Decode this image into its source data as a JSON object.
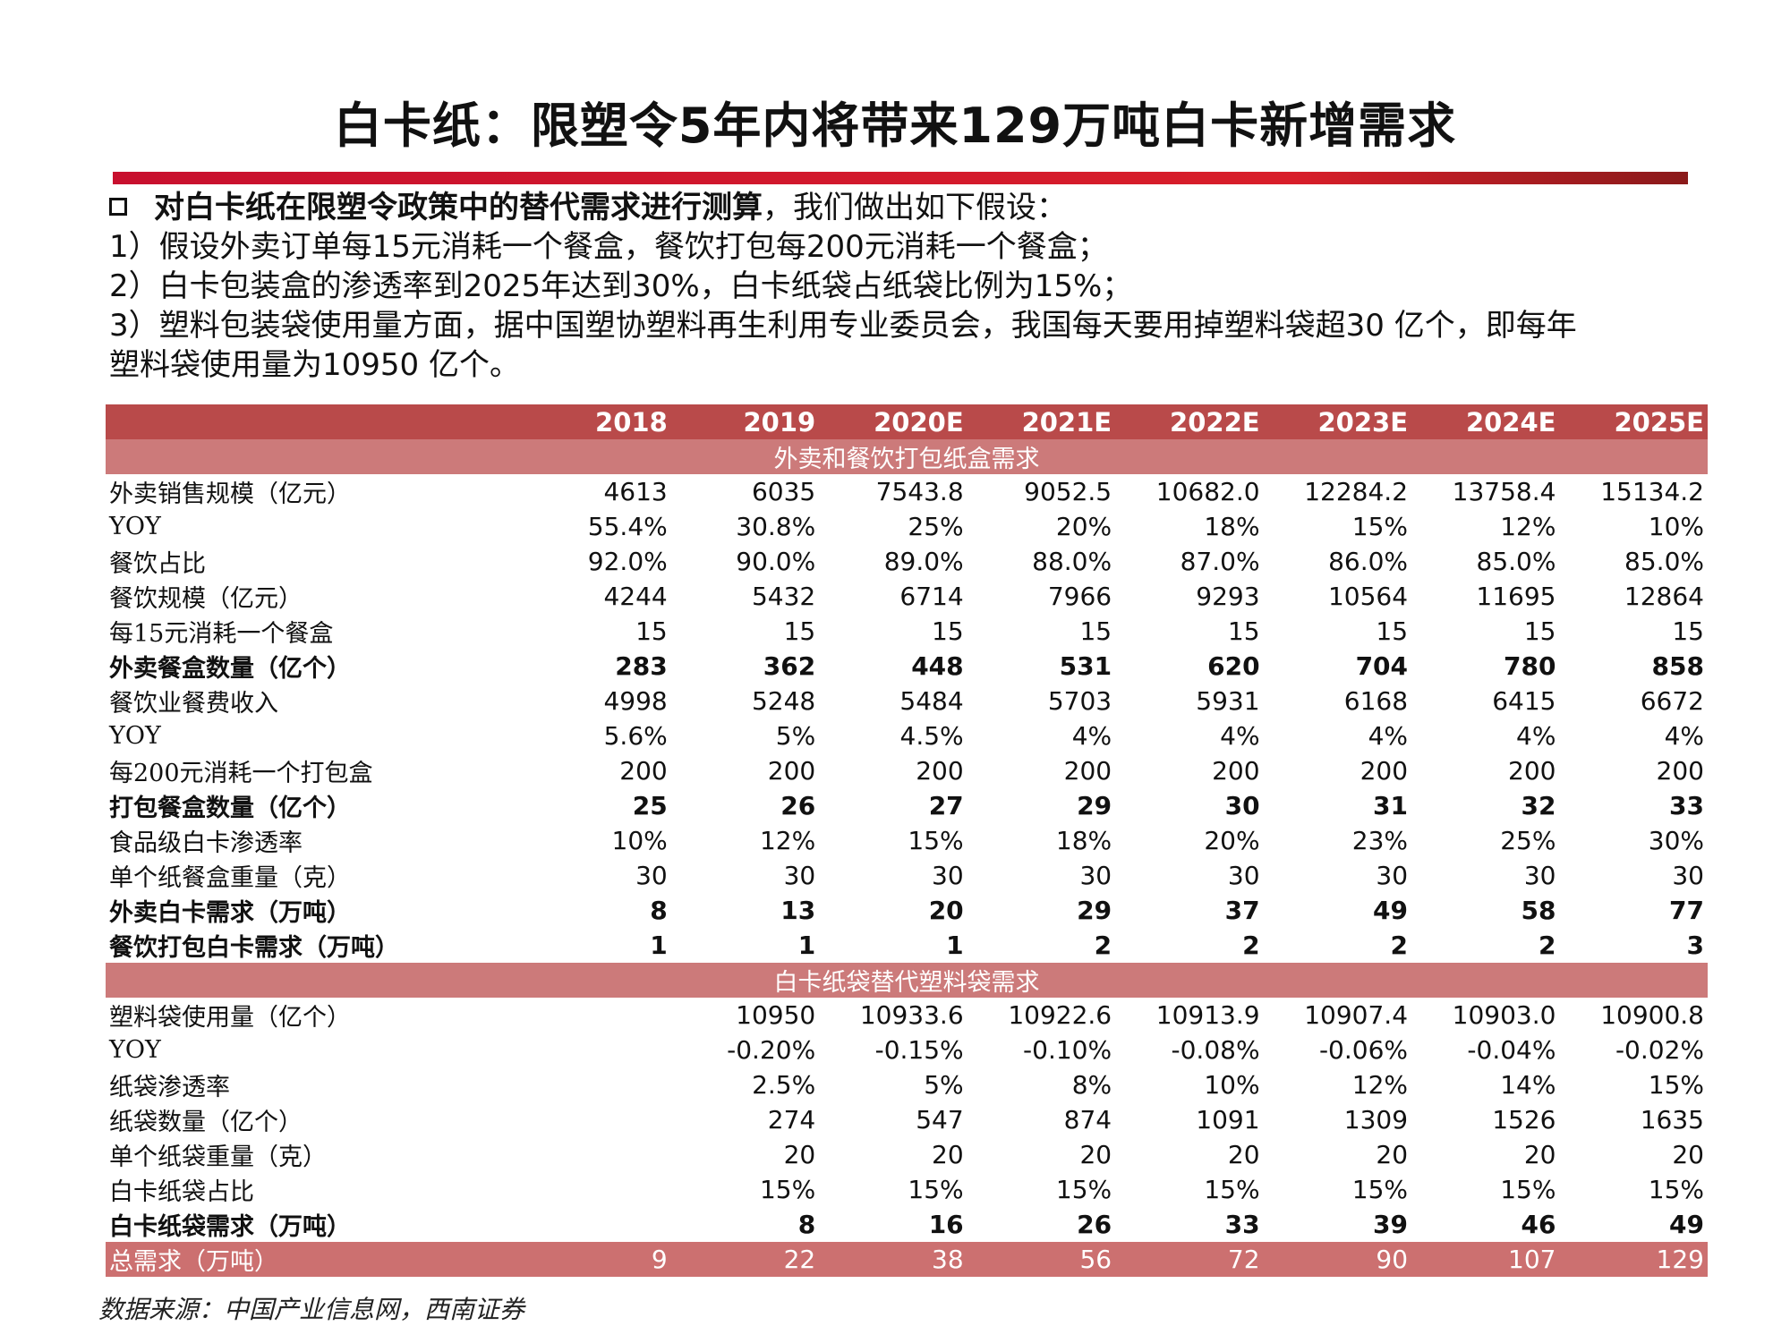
{
  "title": "白卡纸：限塑令5年内将带来129万吨白卡新增需求",
  "intro": {
    "lead": "对白卡纸在限塑令政策中的替代需求进行测算",
    "lead_tail": "，我们做出如下假设：",
    "line1": "1）假设外卖订单每15元消耗一个餐盒，餐饮打包每200元消耗一个餐盒；",
    "line2": "2）白卡包装盒的渗透率到2025年达到30%，白卡纸袋占纸袋比例为15%；",
    "line3": "3）塑料包装袋使用量方面，据中国塑协塑料再生利用专业委员会，我国每天要用掉塑料袋超30 亿个，即每年",
    "line4": "塑料袋使用量为10950 亿个。"
  },
  "table": {
    "years": [
      "2018",
      "2019",
      "2020E",
      "2021E",
      "2022E",
      "2023E",
      "2024E",
      "2025E"
    ],
    "section1": "外卖和餐饮打包纸盒需求",
    "section2": "白卡纸袋替代塑料袋需求",
    "rows1": [
      {
        "label": "外卖销售规模（亿元）",
        "bold": false,
        "values": [
          "4613",
          "6035",
          "7543.8",
          "9052.5",
          "10682.0",
          "12284.2",
          "13758.4",
          "15134.2"
        ]
      },
      {
        "label": "YOY",
        "bold": false,
        "values": [
          "55.4%",
          "30.8%",
          "25%",
          "20%",
          "18%",
          "15%",
          "12%",
          "10%"
        ]
      },
      {
        "label": "餐饮占比",
        "bold": false,
        "values": [
          "92.0%",
          "90.0%",
          "89.0%",
          "88.0%",
          "87.0%",
          "86.0%",
          "85.0%",
          "85.0%"
        ]
      },
      {
        "label": "餐饮规模（亿元）",
        "bold": false,
        "values": [
          "4244",
          "5432",
          "6714",
          "7966",
          "9293",
          "10564",
          "11695",
          "12864"
        ]
      },
      {
        "label": "每15元消耗一个餐盒",
        "bold": false,
        "values": [
          "15",
          "15",
          "15",
          "15",
          "15",
          "15",
          "15",
          "15"
        ]
      },
      {
        "label": "外卖餐盒数量（亿个）",
        "bold": true,
        "values": [
          "283",
          "362",
          "448",
          "531",
          "620",
          "704",
          "780",
          "858"
        ]
      },
      {
        "label": "餐饮业餐费收入",
        "bold": false,
        "values": [
          "4998",
          "5248",
          "5484",
          "5703",
          "5931",
          "6168",
          "6415",
          "6672"
        ]
      },
      {
        "label": "YOY",
        "bold": false,
        "values": [
          "5.6%",
          "5%",
          "4.5%",
          "4%",
          "4%",
          "4%",
          "4%",
          "4%"
        ]
      },
      {
        "label": "每200元消耗一个打包盒",
        "bold": false,
        "values": [
          "200",
          "200",
          "200",
          "200",
          "200",
          "200",
          "200",
          "200"
        ]
      },
      {
        "label": "打包餐盒数量（亿个）",
        "bold": true,
        "values": [
          "25",
          "26",
          "27",
          "29",
          "30",
          "31",
          "32",
          "33"
        ]
      },
      {
        "label": "食品级白卡渗透率",
        "bold": false,
        "values": [
          "10%",
          "12%",
          "15%",
          "18%",
          "20%",
          "23%",
          "25%",
          "30%"
        ]
      },
      {
        "label": "单个纸餐盒重量（克）",
        "bold": false,
        "values": [
          "30",
          "30",
          "30",
          "30",
          "30",
          "30",
          "30",
          "30"
        ]
      },
      {
        "label": "外卖白卡需求（万吨）",
        "bold": true,
        "values": [
          "8",
          "13",
          "20",
          "29",
          "37",
          "49",
          "58",
          "77"
        ]
      },
      {
        "label": "餐饮打包白卡需求（万吨）",
        "bold": true,
        "values": [
          "1",
          "1",
          "1",
          "2",
          "2",
          "2",
          "2",
          "3"
        ]
      }
    ],
    "rows2": [
      {
        "label": "塑料袋使用量（亿个）",
        "bold": false,
        "values": [
          "",
          "10950",
          "10933.6",
          "10922.6",
          "10913.9",
          "10907.4",
          "10903.0",
          "10900.8"
        ]
      },
      {
        "label": "YOY",
        "bold": false,
        "values": [
          "",
          "-0.20%",
          "-0.15%",
          "-0.10%",
          "-0.08%",
          "-0.06%",
          "-0.04%",
          "-0.02%"
        ]
      },
      {
        "label": "纸袋渗透率",
        "bold": false,
        "values": [
          "",
          "2.5%",
          "5%",
          "8%",
          "10%",
          "12%",
          "14%",
          "15%"
        ]
      },
      {
        "label": "纸袋数量（亿个）",
        "bold": false,
        "values": [
          "",
          "274",
          "547",
          "874",
          "1091",
          "1309",
          "1526",
          "1635"
        ]
      },
      {
        "label": "单个纸袋重量（克）",
        "bold": false,
        "values": [
          "",
          "20",
          "20",
          "20",
          "20",
          "20",
          "20",
          "20"
        ]
      },
      {
        "label": "白卡纸袋占比",
        "bold": false,
        "values": [
          "",
          "15%",
          "15%",
          "15%",
          "15%",
          "15%",
          "15%",
          "15%"
        ]
      },
      {
        "label": "白卡纸袋需求（万吨）",
        "bold": true,
        "values": [
          "",
          "8",
          "16",
          "26",
          "33",
          "39",
          "46",
          "49"
        ]
      }
    ],
    "total": {
      "label": "总需求（万吨）",
      "values": [
        "9",
        "22",
        "38",
        "56",
        "72",
        "90",
        "107",
        "129"
      ]
    }
  },
  "source": "数据来源：中国产业信息网，西南证券",
  "colors": {
    "accent_red": "#c8102e",
    "header_bg": "#b94a4a",
    "section_bg": "#cc7a7a"
  }
}
